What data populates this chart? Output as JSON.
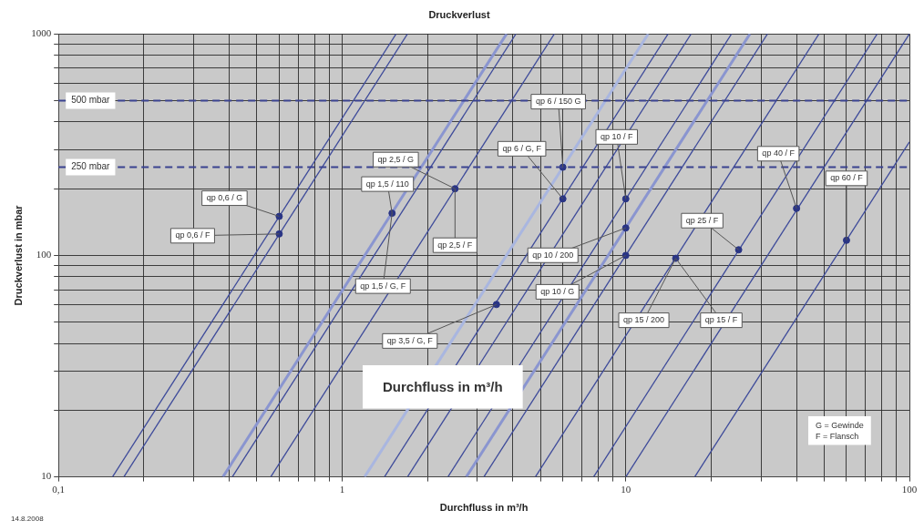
{
  "chart_data": {
    "type": "line",
    "title": "Druckverlust",
    "xlabel": "Durchfluss in m³/h",
    "ylabel": "Druckverlust in mbar",
    "log": "xy",
    "grid": true,
    "legend": false,
    "line_style": "solid",
    "xlim": [
      0.1,
      100
    ],
    "ylim": [
      10,
      1000
    ],
    "xticks": [
      {
        "value": 0.1,
        "label": "0,1"
      },
      {
        "value": 0.2,
        "label": null
      },
      {
        "value": 0.3,
        "label": null
      },
      {
        "value": 0.4,
        "label": null
      },
      {
        "value": 0.5,
        "label": null
      },
      {
        "value": 0.6,
        "label": null
      },
      {
        "value": 0.7,
        "label": null
      },
      {
        "value": 0.8,
        "label": null
      },
      {
        "value": 0.9,
        "label": null
      },
      1,
      {
        "value": 2,
        "label": null
      },
      {
        "value": 3,
        "label": null
      },
      {
        "value": 4,
        "label": null
      },
      {
        "value": 5,
        "label": null
      },
      {
        "value": 6,
        "label": null
      },
      {
        "value": 7,
        "label": null
      },
      {
        "value": 8,
        "label": null
      },
      {
        "value": 9,
        "label": null
      },
      10,
      {
        "value": 20,
        "label": null
      },
      {
        "value": 30,
        "label": null
      },
      {
        "value": 40,
        "label": null
      },
      {
        "value": 50,
        "label": null
      },
      {
        "value": 60,
        "label": null
      },
      {
        "value": 70,
        "label": null
      },
      {
        "value": 80,
        "label": null
      },
      {
        "value": 90,
        "label": null
      },
      100
    ],
    "yticks": [
      10,
      {
        "value": 20,
        "label": null
      },
      {
        "value": 30,
        "label": null
      },
      {
        "value": 40,
        "label": null
      },
      {
        "value": 50,
        "label": null
      },
      {
        "value": 60,
        "label": null
      },
      {
        "value": 70,
        "label": null
      },
      {
        "value": 80,
        "label": null
      },
      {
        "value": 90,
        "label": null
      },
      100,
      {
        "value": 200,
        "label": null
      },
      {
        "value": 300,
        "label": null
      },
      {
        "value": 400,
        "label": null
      },
      {
        "value": 500,
        "label": null
      },
      {
        "value": 600,
        "label": null
      },
      {
        "value": 700,
        "label": null
      },
      {
        "value": 800,
        "label": null
      },
      {
        "value": 900,
        "label": null
      },
      1000
    ],
    "series": [
      {
        "color": "#3d4a9a",
        "x": [
          0.155,
          1.55
        ],
        "values": [
          10,
          1000
        ]
      },
      {
        "color": "#3d4a9a",
        "x": [
          0.17,
          1.7
        ],
        "values": [
          10,
          1000
        ]
      },
      {
        "color": "#8a95d0",
        "x": [
          0.38,
          3.8
        ],
        "values": [
          10,
          1000
        ]
      },
      {
        "color": "#3d4a9a",
        "x": [
          0.41,
          4.1
        ],
        "values": [
          10,
          1000
        ]
      },
      {
        "color": "#3d4a9a",
        "x": [
          0.56,
          5.6
        ],
        "values": [
          10,
          1000
        ]
      },
      {
        "color": "#a9b6e0",
        "x": [
          1.2,
          12
        ],
        "values": [
          10,
          1000
        ]
      },
      {
        "color": "#3d4a9a",
        "x": [
          1.41,
          14.1
        ],
        "values": [
          10,
          1000
        ]
      },
      {
        "color": "#3d4a9a",
        "x": [
          1.7,
          17
        ],
        "values": [
          10,
          1000
        ]
      },
      {
        "color": "#3d4a9a",
        "x": [
          2.36,
          23.6
        ],
        "values": [
          10,
          1000
        ]
      },
      {
        "color": "#8a95d0",
        "x": [
          2.74,
          27.4
        ],
        "values": [
          10,
          1000
        ]
      },
      {
        "color": "#3d4a9a",
        "x": [
          3.16,
          31.6
        ],
        "values": [
          10,
          1000
        ]
      },
      {
        "color": "#3d4a9a",
        "x": [
          4.8,
          48
        ],
        "values": [
          10,
          1000
        ]
      },
      {
        "color": "#3d4a9a",
        "x": [
          7.7,
          77
        ],
        "values": [
          10,
          1000
        ]
      },
      {
        "color": "#3d4a9a",
        "x": [
          10,
          100
        ],
        "values": [
          10,
          1000
        ]
      },
      {
        "color": "#3d4a9a",
        "x": [
          17.5,
          100
        ],
        "values": [
          10,
          325
        ]
      },
      {
        "type": "scatter",
        "marker": "circle",
        "color": "#2a3585",
        "x": [
          0.6,
          0.6,
          1.5,
          2.5,
          3.5,
          6,
          6,
          10,
          10,
          10,
          15,
          25,
          40,
          60
        ],
        "values": [
          150,
          125,
          155,
          200,
          60,
          180,
          250,
          180,
          133,
          100,
          97,
          106,
          163,
          117
        ]
      }
    ],
    "ref_lines": [
      {
        "axis": "y",
        "value": 500,
        "label": "500 mbar",
        "color": "#3a4290",
        "line_style": "dashed"
      },
      {
        "axis": "y",
        "value": 250,
        "label": "250 mbar",
        "color": "#3a4290",
        "line_style": "dashed"
      }
    ],
    "annotations": [
      {
        "text": "qp 0,6 / G",
        "x": 0.6,
        "y": 150
      },
      {
        "text": "qp 0,6 / F",
        "x": 0.6,
        "y": 125
      },
      {
        "text": "qp 1,5 / 110",
        "x": 1.5,
        "y": 155
      },
      {
        "text": "qp 1,5 / G, F",
        "x": 1.5,
        "y": 155
      },
      {
        "text": "qp 2,5 / G",
        "x": 2.5,
        "y": 200
      },
      {
        "text": "qp 2,5 / F",
        "x": 2.5,
        "y": 200
      },
      {
        "text": "qp 3,5 / G, F",
        "x": 3.5,
        "y": 60
      },
      {
        "text": "qp 6 / G, F",
        "x": 6,
        "y": 180
      },
      {
        "text": "qp 6 / 150 G",
        "x": 6,
        "y": 250
      },
      {
        "text": "qp 10 / F",
        "x": 10,
        "y": 180
      },
      {
        "text": "qp 10 / 200",
        "x": 10,
        "y": 133
      },
      {
        "text": "qp 10 / G",
        "x": 10,
        "y": 100
      },
      {
        "text": "qp 15 / 200",
        "x": 15,
        "y": 97
      },
      {
        "text": "qp 15 / F",
        "x": 15,
        "y": 97
      },
      {
        "text": "qp 25 / F",
        "x": 25,
        "y": 106
      },
      {
        "text": "qp 40 / F",
        "x": 40,
        "y": 163
      },
      {
        "text": "qp 60 / F",
        "x": 60,
        "y": 117
      },
      "Durchfluss in m³/h",
      "G = Gewinde\nF = Flansch",
      "14.8.2008"
    ]
  }
}
